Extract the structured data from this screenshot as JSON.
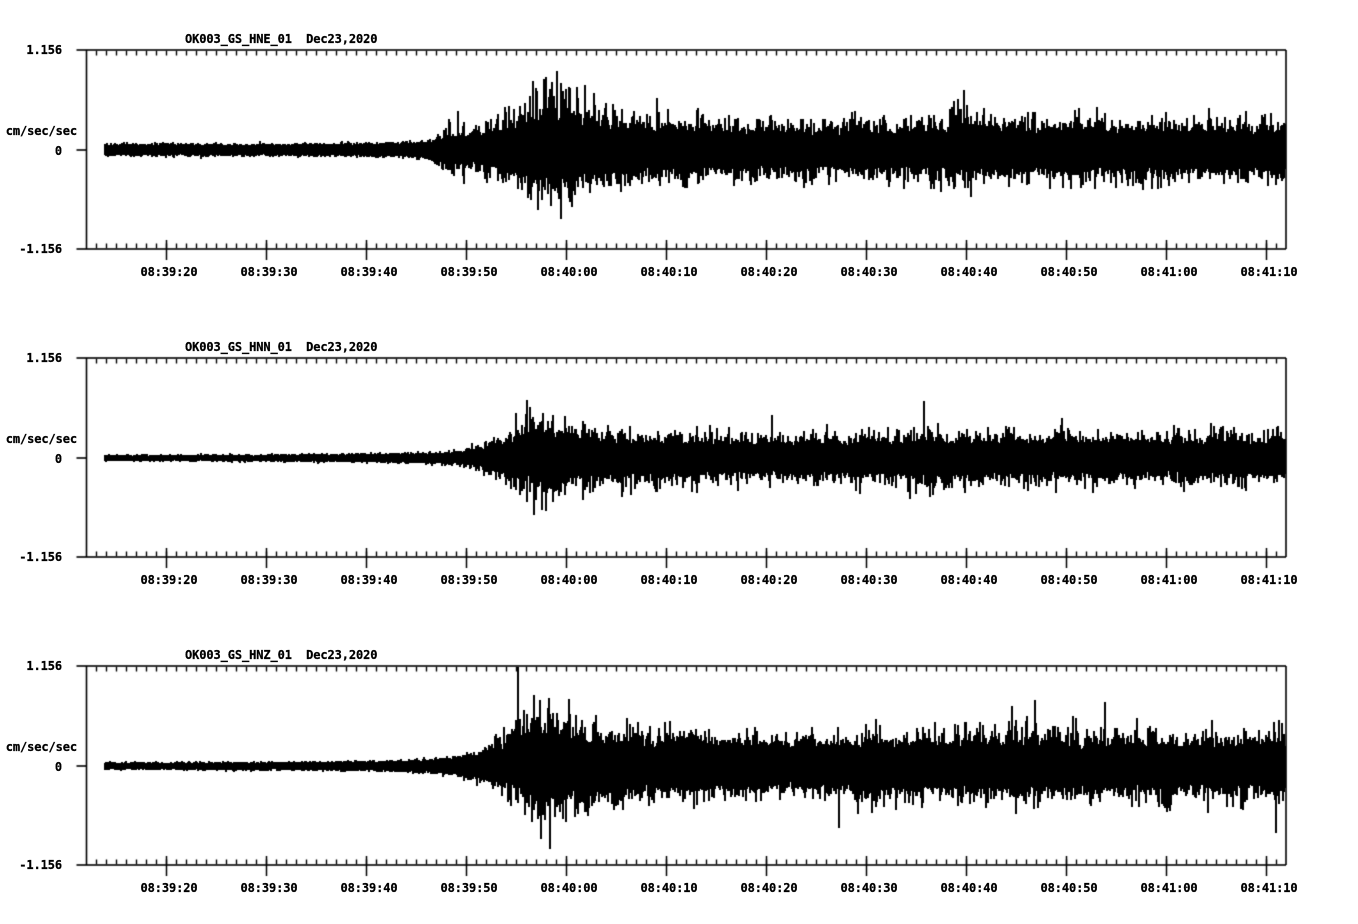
{
  "chart_data": {
    "type": "line",
    "subtype": "seismogram-min-max-envelope",
    "background_color": "#ffffff",
    "ink_color": "#000000",
    "y_axis": {
      "label": "cm/sec/sec",
      "max": 1.156,
      "min": -1.156,
      "max_label": "1.156",
      "zero_label": "0",
      "min_label": "-1.156"
    },
    "time_axis": {
      "start": "08:39:12",
      "end": "08:41:12",
      "seconds_per_label": 10,
      "minor_tick_seconds": 1,
      "tick_offsets_sec": [
        8,
        18,
        28,
        38,
        48,
        58,
        68,
        78,
        88,
        98,
        108,
        118
      ],
      "tick_labels": [
        "08:39:20",
        "08:39:30",
        "08:39:40",
        "08:39:50",
        "08:40:00",
        "08:40:10",
        "08:40:20",
        "08:40:30",
        "08:40:40",
        "08:40:50",
        "08:41:00",
        "08:41:10"
      ]
    },
    "panels": [
      {
        "channel": "HNE",
        "station_code": "OK003_GS_HNE_01",
        "date_label": "Dec23,2020",
        "title": "OK003_GS_HNE_01  Dec23,2020",
        "seed": 1337,
        "trace_start_sec": 1.85,
        "envelope_peak": [
          [
            1.85,
            0.1
          ],
          [
            12,
            0.095
          ],
          [
            22,
            0.1
          ],
          [
            28,
            0.105
          ],
          [
            31,
            0.115
          ],
          [
            33.5,
            0.14
          ],
          [
            35,
            0.2
          ],
          [
            36.5,
            0.4
          ],
          [
            38,
            0.4
          ],
          [
            39.5,
            0.36
          ],
          [
            41,
            0.45
          ],
          [
            42.5,
            0.6
          ],
          [
            44,
            0.78
          ],
          [
            45.5,
            0.88
          ],
          [
            46.8,
            0.9
          ],
          [
            48,
            0.82
          ],
          [
            49.5,
            0.74
          ],
          [
            51,
            0.62
          ],
          [
            53,
            0.58
          ],
          [
            55,
            0.55
          ],
          [
            58,
            0.53
          ],
          [
            62,
            0.5
          ],
          [
            66,
            0.47
          ],
          [
            70,
            0.46
          ],
          [
            74,
            0.49
          ],
          [
            78,
            0.47
          ],
          [
            82,
            0.5
          ],
          [
            85,
            0.55
          ],
          [
            87.5,
            0.69
          ],
          [
            89,
            0.53
          ],
          [
            92,
            0.49
          ],
          [
            96,
            0.51
          ],
          [
            100,
            0.5
          ],
          [
            104,
            0.48
          ],
          [
            108,
            0.5
          ],
          [
            112,
            0.49
          ],
          [
            116,
            0.51
          ],
          [
            120,
            0.5
          ]
        ],
        "envelope_core": [
          [
            1.85,
            0.055
          ],
          [
            20,
            0.057
          ],
          [
            30,
            0.065
          ],
          [
            34,
            0.08
          ],
          [
            36,
            0.11
          ],
          [
            39,
            0.12
          ],
          [
            42,
            0.17
          ],
          [
            44,
            0.24
          ],
          [
            47,
            0.28
          ],
          [
            50,
            0.25
          ],
          [
            53,
            0.208
          ],
          [
            57,
            0.188
          ],
          [
            62,
            0.178
          ],
          [
            70,
            0.163
          ],
          [
            80,
            0.163
          ],
          [
            90,
            0.173
          ],
          [
            100,
            0.178
          ],
          [
            110,
            0.178
          ],
          [
            120,
            0.178
          ]
        ],
        "spikes": [
          [
            35.9,
            0.25
          ],
          [
            36.3,
            0.33
          ],
          [
            36.7,
            -0.3
          ],
          [
            37.1,
            0.45
          ],
          [
            37.6,
            0.28
          ],
          [
            37.7,
            -0.4
          ],
          [
            38.9,
            -0.25
          ],
          [
            40.1,
            0.32
          ],
          [
            44.6,
            0.8
          ],
          [
            45.1,
            -0.7
          ],
          [
            47.0,
            0.92
          ],
          [
            47.4,
            -0.8
          ],
          [
            49.8,
            0.76
          ],
          [
            57,
            0.6
          ],
          [
            87.7,
            0.7
          ],
          [
            88.4,
            -0.55
          ],
          [
            101,
            0.5
          ]
        ]
      },
      {
        "channel": "HNN",
        "station_code": "OK003_GS_HNN_01",
        "date_label": "Dec23,2020",
        "title": "OK003_GS_HNN_01  Dec23,2020",
        "seed": 9241,
        "trace_start_sec": 1.85,
        "envelope_peak": [
          [
            1.85,
            0.055
          ],
          [
            10,
            0.055
          ],
          [
            18,
            0.06
          ],
          [
            24,
            0.065
          ],
          [
            28,
            0.07
          ],
          [
            31,
            0.08
          ],
          [
            33,
            0.085
          ],
          [
            35,
            0.1
          ],
          [
            36.5,
            0.12
          ],
          [
            38,
            0.15
          ],
          [
            39.5,
            0.2
          ],
          [
            40.1,
            0.28
          ],
          [
            41.6,
            0.38
          ],
          [
            43.1,
            0.55
          ],
          [
            44.4,
            0.66
          ],
          [
            45.6,
            0.68
          ],
          [
            47.1,
            0.6
          ],
          [
            48.6,
            0.54
          ],
          [
            50.6,
            0.48
          ],
          [
            54,
            0.44
          ],
          [
            57,
            0.42
          ],
          [
            61,
            0.41
          ],
          [
            65,
            0.4
          ],
          [
            69,
            0.42
          ],
          [
            73,
            0.4
          ],
          [
            77,
            0.41
          ],
          [
            80,
            0.43
          ],
          [
            83.7,
            0.62
          ],
          [
            85.5,
            0.46
          ],
          [
            88,
            0.42
          ],
          [
            91,
            0.46
          ],
          [
            94,
            0.42
          ],
          [
            98,
            0.43
          ],
          [
            102,
            0.41
          ],
          [
            106,
            0.43
          ],
          [
            110,
            0.41
          ],
          [
            114,
            0.42
          ],
          [
            118,
            0.43
          ],
          [
            120,
            0.42
          ]
        ],
        "envelope_core": [
          [
            1.85,
            0.027
          ],
          [
            15,
            0.029
          ],
          [
            25,
            0.035
          ],
          [
            31,
            0.042
          ],
          [
            35,
            0.05
          ],
          [
            38,
            0.065
          ],
          [
            40.1,
            0.09
          ],
          [
            42.6,
            0.13
          ],
          [
            45.1,
            0.22
          ],
          [
            48.1,
            0.19
          ],
          [
            51.1,
            0.15
          ],
          [
            56,
            0.14
          ],
          [
            62,
            0.135
          ],
          [
            70,
            0.13
          ],
          [
            80,
            0.135
          ],
          [
            90,
            0.135
          ],
          [
            100,
            0.14
          ],
          [
            110,
            0.14
          ],
          [
            120,
            0.14
          ]
        ],
        "spikes": [
          [
            38.5,
            0.18
          ],
          [
            40.2,
            -0.2
          ],
          [
            44.0,
            0.67
          ],
          [
            44.7,
            -0.66
          ],
          [
            45.9,
            -0.62
          ],
          [
            42.9,
            0.52
          ],
          [
            83.7,
            0.66
          ],
          [
            84.3,
            -0.45
          ],
          [
            68.5,
            0.5
          ],
          [
            97.5,
            0.47
          ]
        ]
      },
      {
        "channel": "HNZ",
        "station_code": "OK003_GS_HNZ_01",
        "date_label": "Dec23,2020",
        "title": "OK003_GS_HNZ_01  Dec23,2020",
        "seed": 5521,
        "trace_start_sec": 1.85,
        "envelope_peak": [
          [
            1.85,
            0.065
          ],
          [
            10,
            0.066
          ],
          [
            18,
            0.07
          ],
          [
            24,
            0.076
          ],
          [
            28,
            0.085
          ],
          [
            31,
            0.098
          ],
          [
            33,
            0.1
          ],
          [
            35,
            0.12
          ],
          [
            36.5,
            0.15
          ],
          [
            38,
            0.2
          ],
          [
            39.5,
            0.3
          ],
          [
            41,
            0.45
          ],
          [
            42.5,
            0.65
          ],
          [
            44,
            0.8
          ],
          [
            45.5,
            0.85
          ],
          [
            47,
            0.8
          ],
          [
            48.5,
            0.75
          ],
          [
            50,
            0.7
          ],
          [
            52,
            0.65
          ],
          [
            54.5,
            0.6
          ],
          [
            57,
            0.57
          ],
          [
            60,
            0.55
          ],
          [
            63,
            0.53
          ],
          [
            66,
            0.55
          ],
          [
            69,
            0.53
          ],
          [
            72,
            0.52
          ],
          [
            75,
            0.55
          ],
          [
            78,
            0.56
          ],
          [
            81,
            0.54
          ],
          [
            84,
            0.56
          ],
          [
            87,
            0.57
          ],
          [
            90,
            0.58
          ],
          [
            93,
            0.62
          ],
          [
            95,
            0.68
          ],
          [
            97,
            0.58
          ],
          [
            100,
            0.6
          ],
          [
            103,
            0.62
          ],
          [
            106,
            0.58
          ],
          [
            109,
            0.56
          ],
          [
            112,
            0.55
          ],
          [
            115,
            0.56
          ],
          [
            118,
            0.58
          ],
          [
            120,
            0.56
          ]
        ],
        "envelope_core": [
          [
            1.85,
            0.032
          ],
          [
            15,
            0.035
          ],
          [
            25,
            0.042
          ],
          [
            30,
            0.05
          ],
          [
            34,
            0.062
          ],
          [
            37,
            0.075
          ],
          [
            40,
            0.11
          ],
          [
            42,
            0.18
          ],
          [
            44,
            0.25
          ],
          [
            46,
            0.28
          ],
          [
            49,
            0.25
          ],
          [
            52,
            0.22
          ],
          [
            56,
            0.2
          ],
          [
            60,
            0.19
          ],
          [
            66,
            0.185
          ],
          [
            72,
            0.18
          ],
          [
            80,
            0.18
          ],
          [
            88,
            0.185
          ],
          [
            96,
            0.19
          ],
          [
            104,
            0.19
          ],
          [
            112,
            0.185
          ],
          [
            120,
            0.185
          ]
        ],
        "spikes": [
          [
            43.1,
            1.15
          ],
          [
            44.7,
            0.83
          ],
          [
            46.3,
            -0.97
          ],
          [
            45.4,
            -0.85
          ],
          [
            48.2,
            0.78
          ],
          [
            94.8,
            0.77
          ],
          [
            101.8,
            0.74
          ],
          [
            75.2,
            -0.72
          ],
          [
            118.9,
            -0.78
          ],
          [
            92.5,
            0.7
          ]
        ]
      }
    ]
  }
}
